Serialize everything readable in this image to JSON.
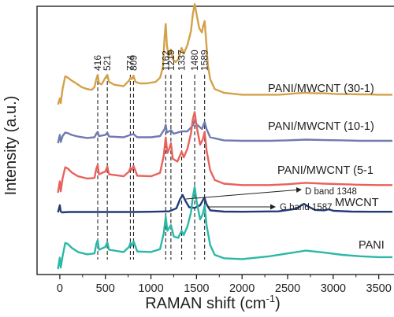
{
  "chart_data": {
    "type": "line",
    "xlabel_main": "RAMAN shift (cm",
    "xlabel_sup": "-1",
    "xlabel_end": ")",
    "ylabel": "Intensity (a.u.)",
    "xlim": [
      -250,
      3650
    ],
    "x_ticks": [
      0,
      500,
      1000,
      1500,
      2000,
      2500,
      3000,
      3500
    ],
    "x_tick_labels": [
      "0",
      "500",
      "1000",
      "1500",
      "2000",
      "2500",
      "3000",
      "3500"
    ],
    "y_ticks_shown": false,
    "grid": false,
    "peak_lines": [
      416,
      521,
      774,
      809,
      1162,
      1219,
      1337,
      1480,
      1589
    ],
    "peak_labels": [
      "416",
      "521",
      "774",
      "809",
      "1162",
      "1219",
      "1337",
      "1480",
      "1589"
    ],
    "annotations": [
      {
        "text": "D band 1348",
        "x": 1348
      },
      {
        "text": "G band 1587",
        "x": 1587
      }
    ],
    "series": [
      {
        "name": "PANI/MWCNT (30-1)",
        "color": "#d4a14a",
        "x": [
          -20,
          0,
          10,
          30,
          60,
          90,
          130,
          180,
          240,
          300,
          350,
          380,
          400,
          416,
          430,
          460,
          500,
          521,
          540,
          600,
          700,
          760,
          774,
          790,
          809,
          830,
          880,
          950,
          1050,
          1100,
          1130,
          1150,
          1162,
          1175,
          1195,
          1219,
          1240,
          1270,
          1300,
          1337,
          1360,
          1400,
          1440,
          1460,
          1480,
          1500,
          1530,
          1560,
          1575,
          1589,
          1605,
          1625,
          1650,
          1700,
          1800,
          2000,
          2200,
          2400,
          2500,
          2600,
          2700,
          2800,
          2900,
          3000,
          3100,
          3200,
          3300,
          3400,
          3500,
          3650
        ],
        "y": [
          0.0,
          0.22,
          0.05,
          0.55,
          1.0,
          0.95,
          0.85,
          0.75,
          0.62,
          0.55,
          0.52,
          0.62,
          0.9,
          1.05,
          0.75,
          0.72,
          0.95,
          1.05,
          0.8,
          0.7,
          0.65,
          0.85,
          0.95,
          0.9,
          1.02,
          0.8,
          0.75,
          0.75,
          0.8,
          0.95,
          1.3,
          2.4,
          2.85,
          2.1,
          1.7,
          1.95,
          1.6,
          1.5,
          1.6,
          2.0,
          1.8,
          2.1,
          2.6,
          3.2,
          3.55,
          3.2,
          2.7,
          2.55,
          2.8,
          2.95,
          2.3,
          1.4,
          0.9,
          0.55,
          0.42,
          0.35,
          0.35,
          0.35,
          0.37,
          0.4,
          0.42,
          0.4,
          0.4,
          0.38,
          0.37,
          0.37,
          0.36,
          0.36,
          0.35,
          0.35
        ]
      },
      {
        "name": "PANI/MWCNT (10-1)",
        "color": "#6f7ab0",
        "x": [
          -20,
          0,
          10,
          30,
          60,
          90,
          130,
          200,
          300,
          380,
          400,
          416,
          430,
          500,
          521,
          540,
          700,
          774,
          809,
          850,
          1000,
          1100,
          1150,
          1162,
          1175,
          1219,
          1250,
          1337,
          1400,
          1460,
          1480,
          1500,
          1560,
          1589,
          1610,
          1650,
          1800,
          2000,
          2300,
          2500,
          2700,
          2900,
          3100,
          3300,
          3500,
          3650
        ],
        "y": [
          0.0,
          0.35,
          0.05,
          0.3,
          0.45,
          0.42,
          0.35,
          0.28,
          0.22,
          0.25,
          0.4,
          0.48,
          0.3,
          0.35,
          0.45,
          0.28,
          0.25,
          0.35,
          0.38,
          0.25,
          0.25,
          0.3,
          0.6,
          0.78,
          0.45,
          0.55,
          0.4,
          0.5,
          0.5,
          0.75,
          0.95,
          0.8,
          0.6,
          0.9,
          0.6,
          0.25,
          0.12,
          0.1,
          0.1,
          0.12,
          0.15,
          0.13,
          0.12,
          0.1,
          0.1,
          0.1
        ]
      },
      {
        "name": "PANI/MWCNT (5-1",
        "color": "#e8625c",
        "x": [
          -20,
          0,
          10,
          30,
          60,
          90,
          130,
          200,
          300,
          380,
          400,
          416,
          430,
          500,
          521,
          540,
          700,
          760,
          774,
          790,
          809,
          850,
          1000,
          1100,
          1140,
          1162,
          1180,
          1200,
          1219,
          1240,
          1290,
          1337,
          1360,
          1400,
          1440,
          1460,
          1480,
          1500,
          1540,
          1570,
          1589,
          1610,
          1650,
          1700,
          1800,
          2000,
          2300,
          2500,
          2700,
          2900,
          3100,
          3300,
          3500,
          3650
        ],
        "y": [
          0.0,
          0.4,
          0.05,
          0.5,
          0.9,
          0.85,
          0.72,
          0.58,
          0.5,
          0.52,
          0.85,
          0.98,
          0.65,
          0.75,
          0.92,
          0.65,
          0.58,
          0.75,
          0.88,
          0.8,
          0.95,
          0.6,
          0.58,
          0.7,
          1.3,
          1.95,
          1.4,
          1.55,
          1.75,
          1.2,
          1.1,
          1.45,
          1.25,
          1.55,
          2.1,
          2.6,
          2.85,
          2.35,
          1.7,
          1.9,
          2.15,
          1.5,
          0.8,
          0.45,
          0.32,
          0.27,
          0.27,
          0.3,
          0.35,
          0.32,
          0.3,
          0.28,
          0.27,
          0.27
        ]
      },
      {
        "name": "MWCNT",
        "color": "#233a78",
        "x": [
          -20,
          0,
          10,
          25,
          100,
          300,
          500,
          800,
          1000,
          1200,
          1280,
          1320,
          1348,
          1380,
          1420,
          1480,
          1540,
          1570,
          1587,
          1610,
          1650,
          1800,
          2000,
          2400,
          2600,
          2650,
          2680,
          2720,
          2800,
          2900,
          2950,
          3000,
          3200,
          3400,
          3650
        ],
        "y": [
          0.0,
          0.35,
          0.04,
          0.0,
          0.02,
          0.02,
          0.02,
          0.02,
          0.03,
          0.05,
          0.2,
          0.65,
          0.85,
          0.55,
          0.25,
          0.22,
          0.35,
          0.6,
          0.72,
          0.4,
          0.1,
          0.04,
          0.03,
          0.05,
          0.18,
          0.35,
          0.42,
          0.3,
          0.12,
          0.1,
          0.15,
          0.08,
          0.04,
          0.03,
          0.03
        ]
      },
      {
        "name": "PANI",
        "color": "#2cb8a6",
        "x": [
          -20,
          0,
          10,
          30,
          60,
          90,
          130,
          200,
          300,
          380,
          400,
          416,
          430,
          500,
          521,
          540,
          700,
          760,
          774,
          790,
          809,
          850,
          1000,
          1100,
          1140,
          1162,
          1180,
          1219,
          1250,
          1300,
          1337,
          1360,
          1400,
          1440,
          1460,
          1480,
          1500,
          1540,
          1570,
          1589,
          1610,
          1650,
          1700,
          1800,
          2000,
          2300,
          2500,
          2700,
          2900,
          3100,
          3300,
          3500,
          3650
        ],
        "y": [
          0.0,
          0.4,
          0.05,
          0.45,
          0.92,
          0.88,
          0.75,
          0.6,
          0.52,
          0.55,
          0.88,
          1.02,
          0.68,
          0.78,
          0.95,
          0.68,
          0.6,
          0.78,
          0.92,
          0.82,
          0.98,
          0.62,
          0.6,
          0.7,
          1.25,
          1.85,
          1.35,
          1.55,
          1.15,
          1.1,
          1.35,
          1.2,
          1.5,
          2.0,
          2.55,
          2.9,
          2.4,
          1.75,
          1.95,
          2.25,
          1.55,
          0.85,
          0.5,
          0.38,
          0.35,
          0.45,
          0.55,
          0.65,
          0.58,
          0.5,
          0.45,
          0.42,
          0.42
        ]
      }
    ]
  }
}
